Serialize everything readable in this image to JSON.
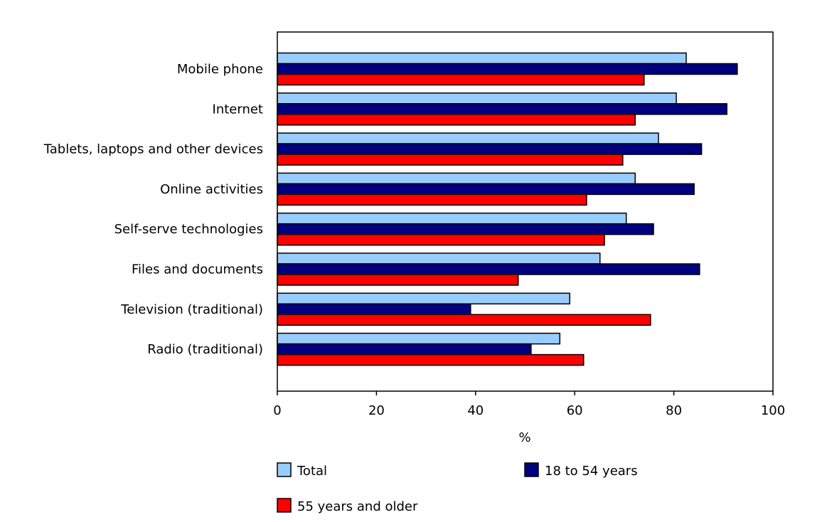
{
  "chart_data": {
    "type": "bar",
    "orientation": "horizontal",
    "categories": [
      "Mobile phone",
      "Internet",
      "Tablets, laptops and other devices",
      "Online activities",
      "Self-serve technologies",
      "Files and documents",
      "Television (traditional)",
      "Radio (traditional)"
    ],
    "series": [
      {
        "name": "Total",
        "color": "#99ccff",
        "values": [
          82.5,
          80.5,
          76.9,
          72.2,
          70.4,
          65.1,
          59.0,
          57.0
        ]
      },
      {
        "name": "18 to 54 years",
        "color": "#000080",
        "values": [
          92.8,
          90.7,
          85.6,
          84.1,
          75.9,
          85.2,
          39.0,
          51.2
        ]
      },
      {
        "name": "55 years and older",
        "color": "#ff0000",
        "values": [
          74.0,
          72.2,
          69.7,
          62.4,
          66.0,
          48.6,
          75.3,
          61.8
        ]
      }
    ],
    "xlabel": "%",
    "ylabel": "",
    "xlim": [
      0,
      100
    ],
    "xticks": [
      "0",
      "20",
      "40",
      "60",
      "80",
      "100"
    ],
    "grid": false,
    "legend_position": "bottom"
  }
}
